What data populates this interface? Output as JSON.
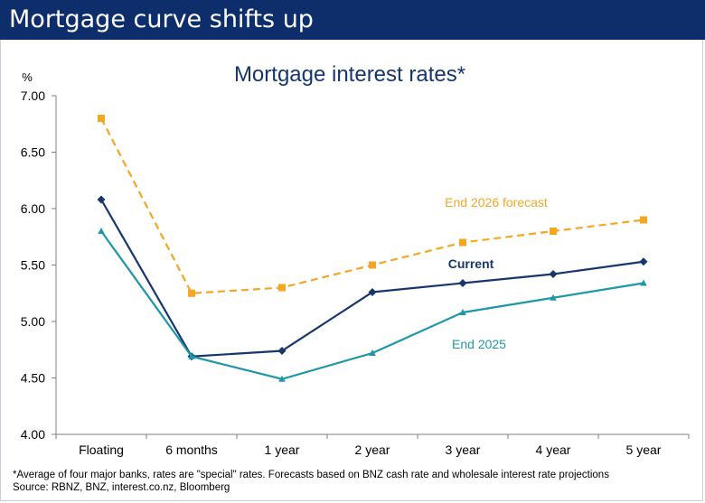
{
  "header": {
    "title": "Mortgage curve shifts up"
  },
  "chart_data": {
    "type": "line",
    "title": "Mortgage interest rates*",
    "ylabel": "%",
    "xlabel": "",
    "categories": [
      "Floating",
      "6 months",
      "1 year",
      "2 year",
      "3 year",
      "4 year",
      "5 year"
    ],
    "ylim": [
      4.0,
      7.0
    ],
    "yticks": [
      "4.00",
      "4.50",
      "5.00",
      "5.50",
      "6.00",
      "6.50",
      "7.00"
    ],
    "grid": false,
    "series": [
      {
        "name": "Current",
        "color": "#17366e",
        "marker": "diamond",
        "dash": "solid",
        "values": [
          6.08,
          4.69,
          4.74,
          5.26,
          5.34,
          5.42,
          5.53
        ]
      },
      {
        "name": "End 2025",
        "color": "#1f97a6",
        "marker": "triangle",
        "dash": "solid",
        "values": [
          5.8,
          4.69,
          4.49,
          4.72,
          5.08,
          5.21,
          5.34
        ]
      },
      {
        "name": "End 2026 forecast",
        "color": "#f5a623",
        "marker": "square",
        "dash": "dashed",
        "values": [
          6.8,
          5.25,
          5.3,
          5.5,
          5.7,
          5.8,
          5.9
        ]
      }
    ]
  },
  "footnote": {
    "line1": "*Average of four major banks, rates are \"special\" rates. Forecasts based on BNZ cash rate and wholesale interest rate projections",
    "line2": "Source: RBNZ, BNZ, interest.co.nz, Bloomberg"
  }
}
